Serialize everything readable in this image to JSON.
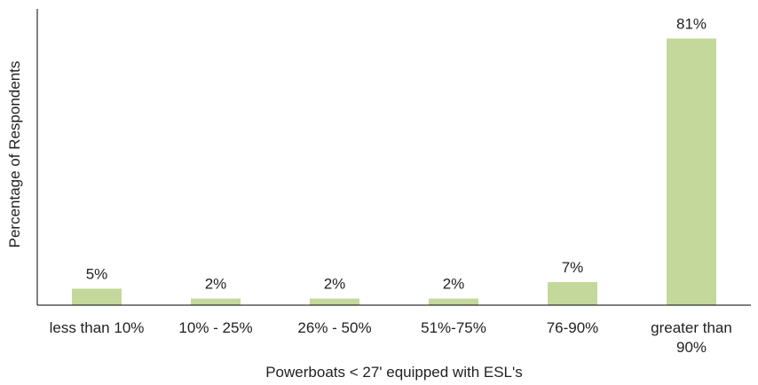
{
  "chart_data": {
    "type": "bar",
    "categories": [
      [
        "less than 10%"
      ],
      [
        "10% - 25%"
      ],
      [
        "26% - 50%"
      ],
      [
        "51%-75%"
      ],
      [
        "76-90%"
      ],
      [
        "greater than",
        "90%"
      ]
    ],
    "values": [
      5,
      2,
      2,
      2,
      7,
      81
    ],
    "data_labels": [
      "5%",
      "2%",
      "2%",
      "2%",
      "7%",
      "81%"
    ],
    "xlabel": "Powerboats < 27' equipped with ESL's",
    "ylabel": "Percentage of Respondents",
    "ylim": [
      0,
      90
    ],
    "grid": false,
    "legend": "none",
    "bar_color": "#c4d89b",
    "axis_color": "#000000"
  }
}
